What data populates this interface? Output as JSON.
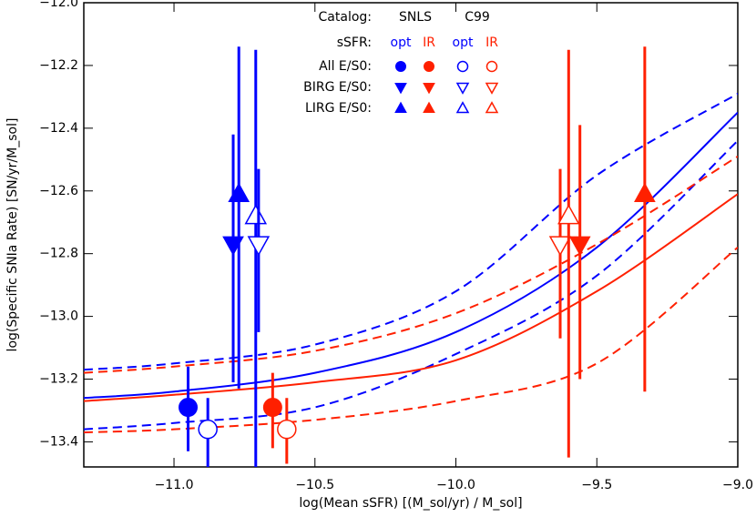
{
  "chart_data": {
    "type": "errorbar",
    "x_label": "log(Mean sSFR) [(M_sol/yr) / M_sol]",
    "y_label": "log(Specific SNIa Rate) [SN/yr/M_sol]",
    "xlim": [
      -11.32,
      -9.0
    ],
    "ylim": [
      -13.48,
      -12.0
    ],
    "xticks": [
      {
        "value": -11.0,
        "label": "−11.0"
      },
      {
        "value": -10.5,
        "label": "−10.5"
      },
      {
        "value": -10.0,
        "label": "−10.0"
      },
      {
        "value": -9.5,
        "label": "−9.5"
      },
      {
        "value": -9.0,
        "label": "−9.0"
      }
    ],
    "yticks": [
      {
        "value": -12.0,
        "label": "−12.0"
      },
      {
        "value": -12.2,
        "label": "−12.2"
      },
      {
        "value": -12.4,
        "label": "−12.4"
      },
      {
        "value": -12.6,
        "label": "−12.6"
      },
      {
        "value": -12.8,
        "label": "−12.8"
      },
      {
        "value": -13.0,
        "label": "−13.0"
      },
      {
        "value": -13.2,
        "label": "−13.2"
      },
      {
        "value": -13.4,
        "label": "−13.4"
      }
    ],
    "curve_x": [
      -11.32,
      -11.0,
      -10.5,
      -10.0,
      -9.5,
      -9.0
    ],
    "curves": [
      {
        "color": "#0000ff",
        "dashed": false,
        "values": [
          -13.26,
          -13.24,
          -13.18,
          -13.05,
          -12.78,
          -12.35
        ]
      },
      {
        "color": "#0000ff",
        "dashed": true,
        "values": [
          -13.17,
          -13.15,
          -13.09,
          -12.92,
          -12.55,
          -12.29
        ]
      },
      {
        "color": "#0000ff",
        "dashed": true,
        "values": [
          -13.36,
          -13.34,
          -13.29,
          -13.12,
          -12.87,
          -12.44
        ]
      },
      {
        "color": "#ff2000",
        "dashed": false,
        "values": [
          -13.27,
          -13.25,
          -13.21,
          -13.14,
          -12.92,
          -12.61
        ]
      },
      {
        "color": "#ff2000",
        "dashed": true,
        "values": [
          -13.18,
          -13.16,
          -13.11,
          -12.99,
          -12.77,
          -12.49
        ]
      },
      {
        "color": "#ff2000",
        "dashed": true,
        "values": [
          -13.37,
          -13.36,
          -13.33,
          -13.27,
          -13.15,
          -12.78
        ]
      }
    ],
    "points": [
      {
        "x": -10.95,
        "y": -13.29,
        "low": -13.43,
        "high": -13.16,
        "color": "#0000ff",
        "marker": "circle",
        "filled": true
      },
      {
        "x": -10.88,
        "y": -13.36,
        "low": -13.48,
        "high": -13.26,
        "color": "#0000ff",
        "marker": "circle",
        "filled": false
      },
      {
        "x": -10.65,
        "y": -13.29,
        "low": -13.42,
        "high": -13.18,
        "color": "#ff2000",
        "marker": "circle",
        "filled": true
      },
      {
        "x": -10.6,
        "y": -13.36,
        "low": -13.47,
        "high": -13.26,
        "color": "#ff2000",
        "marker": "circle",
        "filled": false
      },
      {
        "x": -10.79,
        "y": -12.77,
        "low": -13.21,
        "high": -12.42,
        "color": "#0000ff",
        "marker": "down",
        "filled": true
      },
      {
        "x": -10.77,
        "y": -12.61,
        "low": -13.23,
        "high": -12.14,
        "color": "#0000ff",
        "marker": "up",
        "filled": true
      },
      {
        "x": -10.71,
        "y": -12.68,
        "low": -13.48,
        "high": -12.15,
        "color": "#0000ff",
        "marker": "up",
        "filled": false
      },
      {
        "x": -10.7,
        "y": -12.77,
        "low": -13.05,
        "high": -12.53,
        "color": "#0000ff",
        "marker": "down",
        "filled": false
      },
      {
        "x": -9.63,
        "y": -12.77,
        "low": -13.07,
        "high": -12.53,
        "color": "#ff2000",
        "marker": "down",
        "filled": false
      },
      {
        "x": -9.6,
        "y": -12.68,
        "low": -13.45,
        "high": -12.15,
        "color": "#ff2000",
        "marker": "up",
        "filled": false
      },
      {
        "x": -9.56,
        "y": -12.77,
        "low": -13.2,
        "high": -12.39,
        "color": "#ff2000",
        "marker": "down",
        "filled": true
      },
      {
        "x": -9.33,
        "y": -12.61,
        "low": -13.24,
        "high": -12.14,
        "color": "#ff2000",
        "marker": "up",
        "filled": true
      }
    ],
    "legend": {
      "catalog_row": [
        "Catalog:",
        "SNLS",
        "C99"
      ],
      "ssfr_row": [
        "sSFR:",
        "opt",
        "IR",
        "opt",
        "IR"
      ],
      "rows": [
        "All E/S0:",
        "BIRG E/S0:",
        "LIRG E/S0:"
      ],
      "markers": [
        "circle",
        "down",
        "up"
      ],
      "column_colors": [
        "#0000ff",
        "#ff2000",
        "#0000ff",
        "#ff2000"
      ],
      "column_filled": [
        true,
        true,
        false,
        false
      ]
    }
  }
}
